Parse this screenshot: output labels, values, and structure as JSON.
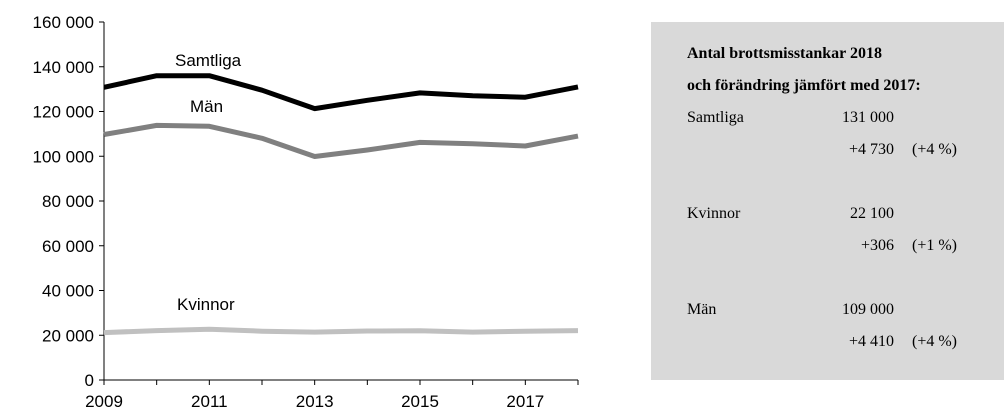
{
  "chart_data": {
    "type": "line",
    "x": [
      2009,
      2010,
      2011,
      2012,
      2013,
      2014,
      2015,
      2016,
      2017,
      2018
    ],
    "xticks": [
      "2009",
      "2011",
      "2013",
      "2015",
      "2017"
    ],
    "yticks": [
      "0",
      "20 000",
      "40 000",
      "60 000",
      "80 000",
      "100 000",
      "120 000",
      "140 000",
      "160 000"
    ],
    "xlim": [
      2009,
      2018
    ],
    "ylim": [
      0,
      160000
    ],
    "grid": false,
    "series": [
      {
        "name": "Samtliga",
        "color": "#000000",
        "values": [
          130800,
          136000,
          136000,
          129500,
          121300,
          125000,
          128300,
          127000,
          126400,
          131000
        ]
      },
      {
        "name": "Män",
        "color": "#808080",
        "values": [
          109700,
          113800,
          113400,
          108000,
          99900,
          102800,
          106200,
          105600,
          104600,
          109000
        ]
      },
      {
        "name": "Kvinnor",
        "color": "#c0c0c0",
        "values": [
          21200,
          22100,
          22700,
          21800,
          21400,
          21900,
          22000,
          21400,
          21800,
          22100
        ]
      }
    ]
  },
  "summary": {
    "title_line1": "Antal brottsmisstankar 2018",
    "title_line2": "och förändring jämfört med 2017:",
    "groups": [
      {
        "name": "Samtliga",
        "total": "131 000",
        "change": "+4 730",
        "pct": "(+4 %)"
      },
      {
        "name": "Kvinnor",
        "total": "22 100",
        "change": "+306",
        "pct": "(+1 %)"
      },
      {
        "name": "Män",
        "total": "109 000",
        "change": "+4 410",
        "pct": "(+4 %)"
      }
    ]
  }
}
